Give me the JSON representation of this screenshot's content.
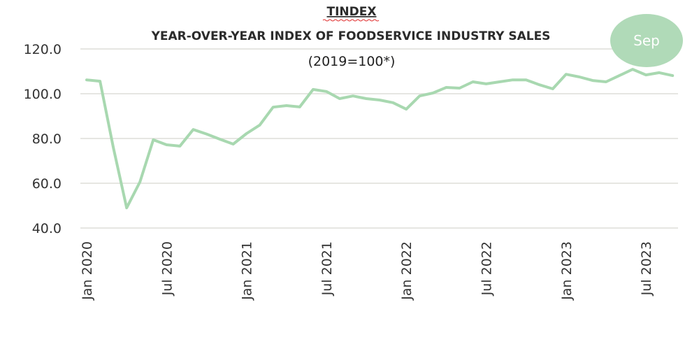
{
  "chart_data": {
    "type": "line",
    "title": "TINDEX",
    "subtitle": "YEAR-OVER-YEAR INDEX OF FOODSERVICE INDUSTRY SALES",
    "note": "(2019=100*)",
    "annotation": "Sep",
    "xlabel": "",
    "ylabel": "",
    "ylim": [
      40,
      120
    ],
    "yticks": [
      "40.0",
      "60.0",
      "80.0",
      "100.0",
      "120.0"
    ],
    "xtick_labels": [
      "Jan 2020",
      "Jul 2020",
      "Jan 2021",
      "Jul 2021",
      "Jan 2022",
      "Jul 2022",
      "Jan 2023",
      "Jul 2023"
    ],
    "x_start": "2020-01",
    "x_end": "2023-09",
    "grid": true,
    "line_color": "#a8d8b0",
    "bubble_color": "#b0dab8",
    "values": [
      106.2,
      105.6,
      76.0,
      49.0,
      60.6,
      79.4,
      77.2,
      76.6,
      84.0,
      82.0,
      79.7,
      77.5,
      82.2,
      86.0,
      94.0,
      94.7,
      94.1,
      101.9,
      101.0,
      97.8,
      99.0,
      97.8,
      97.2,
      96.0,
      93.1,
      99.0,
      100.3,
      102.8,
      102.5,
      105.3,
      104.4,
      105.3,
      106.2,
      106.2,
      104.0,
      102.2,
      108.7,
      107.5,
      105.9,
      105.3,
      108.1,
      110.9,
      108.4,
      109.4,
      108.1
    ]
  }
}
